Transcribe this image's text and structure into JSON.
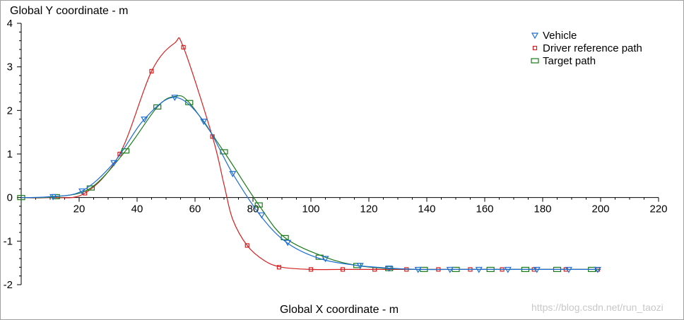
{
  "chart_data": {
    "type": "line",
    "xlabel": "Global X coordinate - m",
    "ylabel": "Global Y coordinate - m",
    "xlim": [
      0,
      220
    ],
    "ylim": [
      -2,
      4
    ],
    "x_ticks": [
      20,
      40,
      60,
      80,
      100,
      120,
      140,
      160,
      180,
      200,
      220
    ],
    "y_ticks": [
      4,
      3,
      2,
      1,
      0,
      -1,
      -2
    ],
    "legend_position": "top-right",
    "series": [
      {
        "name": "Vehicle",
        "color": "#1e6ed6",
        "marker": "triangle-down",
        "x": [
          0,
          10,
          21,
          32,
          42.5,
          53,
          63,
          73,
          83,
          92,
          103,
          115,
          127,
          137,
          148,
          158,
          168,
          178,
          189,
          199
        ],
        "y": [
          0,
          0.02,
          0.15,
          0.8,
          1.8,
          2.3,
          1.75,
          0.55,
          -0.45,
          -1.05,
          -1.4,
          -1.55,
          -1.62,
          -1.65,
          -1.65,
          -1.65,
          -1.65,
          -1.65,
          -1.65,
          -1.65
        ],
        "markers_x": [
          11,
          21,
          32,
          42.5,
          53,
          63,
          73,
          83,
          92,
          105,
          117,
          127,
          137,
          148,
          158,
          168,
          178,
          189,
          199
        ],
        "markers_y": [
          0.02,
          0.15,
          0.8,
          1.8,
          2.3,
          1.75,
          0.55,
          -0.4,
          -1.03,
          -1.4,
          -1.56,
          -1.62,
          -1.65,
          -1.65,
          -1.65,
          -1.65,
          -1.65,
          -1.65,
          -1.65
        ]
      },
      {
        "name": "Driver reference path",
        "color": "#d42020",
        "marker": "square",
        "x": [
          0,
          10,
          22,
          34,
          45,
          53,
          56,
          66,
          70,
          73,
          78,
          84,
          90,
          100,
          111,
          122,
          133,
          144,
          155,
          166,
          177,
          188,
          199
        ],
        "y": [
          0,
          0.0,
          0.1,
          1.0,
          2.9,
          3.55,
          3.45,
          1.4,
          0.3,
          -0.5,
          -1.1,
          -1.45,
          -1.6,
          -1.65,
          -1.65,
          -1.65,
          -1.65,
          -1.65,
          -1.65,
          -1.65,
          -1.65,
          -1.65,
          -1.65
        ],
        "markers_x": [
          22,
          34,
          45,
          56,
          66,
          78,
          89,
          100,
          111,
          122,
          133,
          144,
          155,
          166,
          177,
          188,
          199
        ],
        "markers_y": [
          0.1,
          1.0,
          2.9,
          3.45,
          1.4,
          -1.1,
          -1.6,
          -1.65,
          -1.65,
          -1.65,
          -1.65,
          -1.65,
          -1.65,
          -1.65,
          -1.65,
          -1.65,
          -1.65
        ]
      },
      {
        "name": "Target path",
        "color": "#1a7a1a",
        "marker": "square",
        "x": [
          0,
          12,
          24,
          36,
          47,
          53,
          58,
          70,
          82,
          91,
          105,
          116,
          127,
          139,
          150,
          162,
          174,
          185,
          197,
          200
        ],
        "y": [
          0,
          0.02,
          0.22,
          1.07,
          2.08,
          2.32,
          2.18,
          1.05,
          -0.17,
          -0.92,
          -1.37,
          -1.56,
          -1.63,
          -1.65,
          -1.65,
          -1.65,
          -1.65,
          -1.65,
          -1.65,
          -1.65
        ],
        "markers_x": [
          0,
          12,
          24,
          36,
          47,
          58,
          70,
          82,
          91,
          103,
          116,
          127,
          139,
          150,
          162,
          174,
          185,
          197
        ],
        "markers_y": [
          0,
          0.02,
          0.22,
          1.07,
          2.08,
          2.18,
          1.05,
          -0.17,
          -0.92,
          -1.37,
          -1.56,
          -1.63,
          -1.65,
          -1.65,
          -1.65,
          -1.65,
          -1.65,
          -1.65
        ]
      }
    ]
  },
  "watermark": "https://blog.csdn.net/run_taozi"
}
